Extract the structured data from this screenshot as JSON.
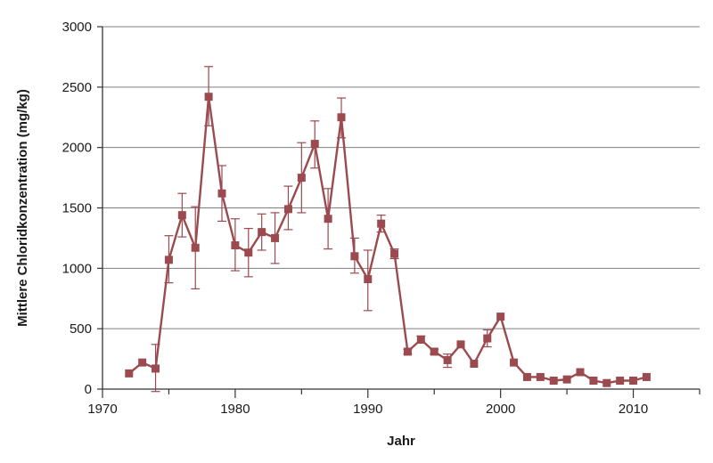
{
  "chart_data": {
    "type": "line",
    "title": "",
    "xlabel": "Jahr",
    "ylabel": "Mittlere Chloridkonzentration (mg/kg)",
    "xlim": [
      1970,
      2015
    ],
    "ylim": [
      0,
      3000
    ],
    "xticks": [
      1970,
      1980,
      1990,
      2000,
      2010
    ],
    "yticks": [
      0,
      500,
      1000,
      1500,
      2000,
      2500,
      3000
    ],
    "grid": "horizontal",
    "colors": {
      "series": "#9b4a4f",
      "grid": "#7f7f7f",
      "axis": "#333333"
    },
    "series": [
      {
        "x": [
          1972,
          1973,
          1974,
          1975,
          1976,
          1977,
          1978,
          1979,
          1980,
          1981,
          1982,
          1983,
          1984,
          1985,
          1986,
          1987,
          1988,
          1989,
          1990,
          1991,
          1992,
          1993,
          1994,
          1995,
          1996,
          1997,
          1998,
          1999,
          2000,
          2001,
          2002,
          2003,
          2004,
          2005,
          2006,
          2007,
          2008,
          2009,
          2010,
          2011
        ],
        "y": [
          130,
          220,
          170,
          1070,
          1440,
          1170,
          2420,
          1620,
          1190,
          1130,
          1300,
          1250,
          1490,
          1750,
          2030,
          1410,
          2250,
          1100,
          910,
          1370,
          1120,
          310,
          410,
          310,
          240,
          370,
          210,
          420,
          600,
          220,
          100,
          100,
          70,
          80,
          140,
          70,
          50,
          70,
          70,
          100
        ],
        "error_low": [
          null,
          null,
          -20,
          880,
          1260,
          830,
          2180,
          1390,
          980,
          930,
          1150,
          1040,
          1320,
          1460,
          1830,
          1160,
          2080,
          960,
          650,
          1300,
          1080,
          290,
          380,
          290,
          180,
          null,
          null,
          350,
          null,
          null,
          null,
          null,
          null,
          null,
          null,
          null,
          null,
          null,
          null,
          null
        ],
        "error_high": [
          null,
          null,
          370,
          1270,
          1620,
          1510,
          2670,
          1850,
          1410,
          1330,
          1450,
          1460,
          1680,
          2040,
          2220,
          1660,
          2410,
          1250,
          1150,
          1440,
          1160,
          330,
          440,
          330,
          290,
          null,
          null,
          490,
          null,
          null,
          null,
          null,
          null,
          null,
          null,
          null,
          null,
          null,
          null,
          null
        ]
      }
    ]
  }
}
